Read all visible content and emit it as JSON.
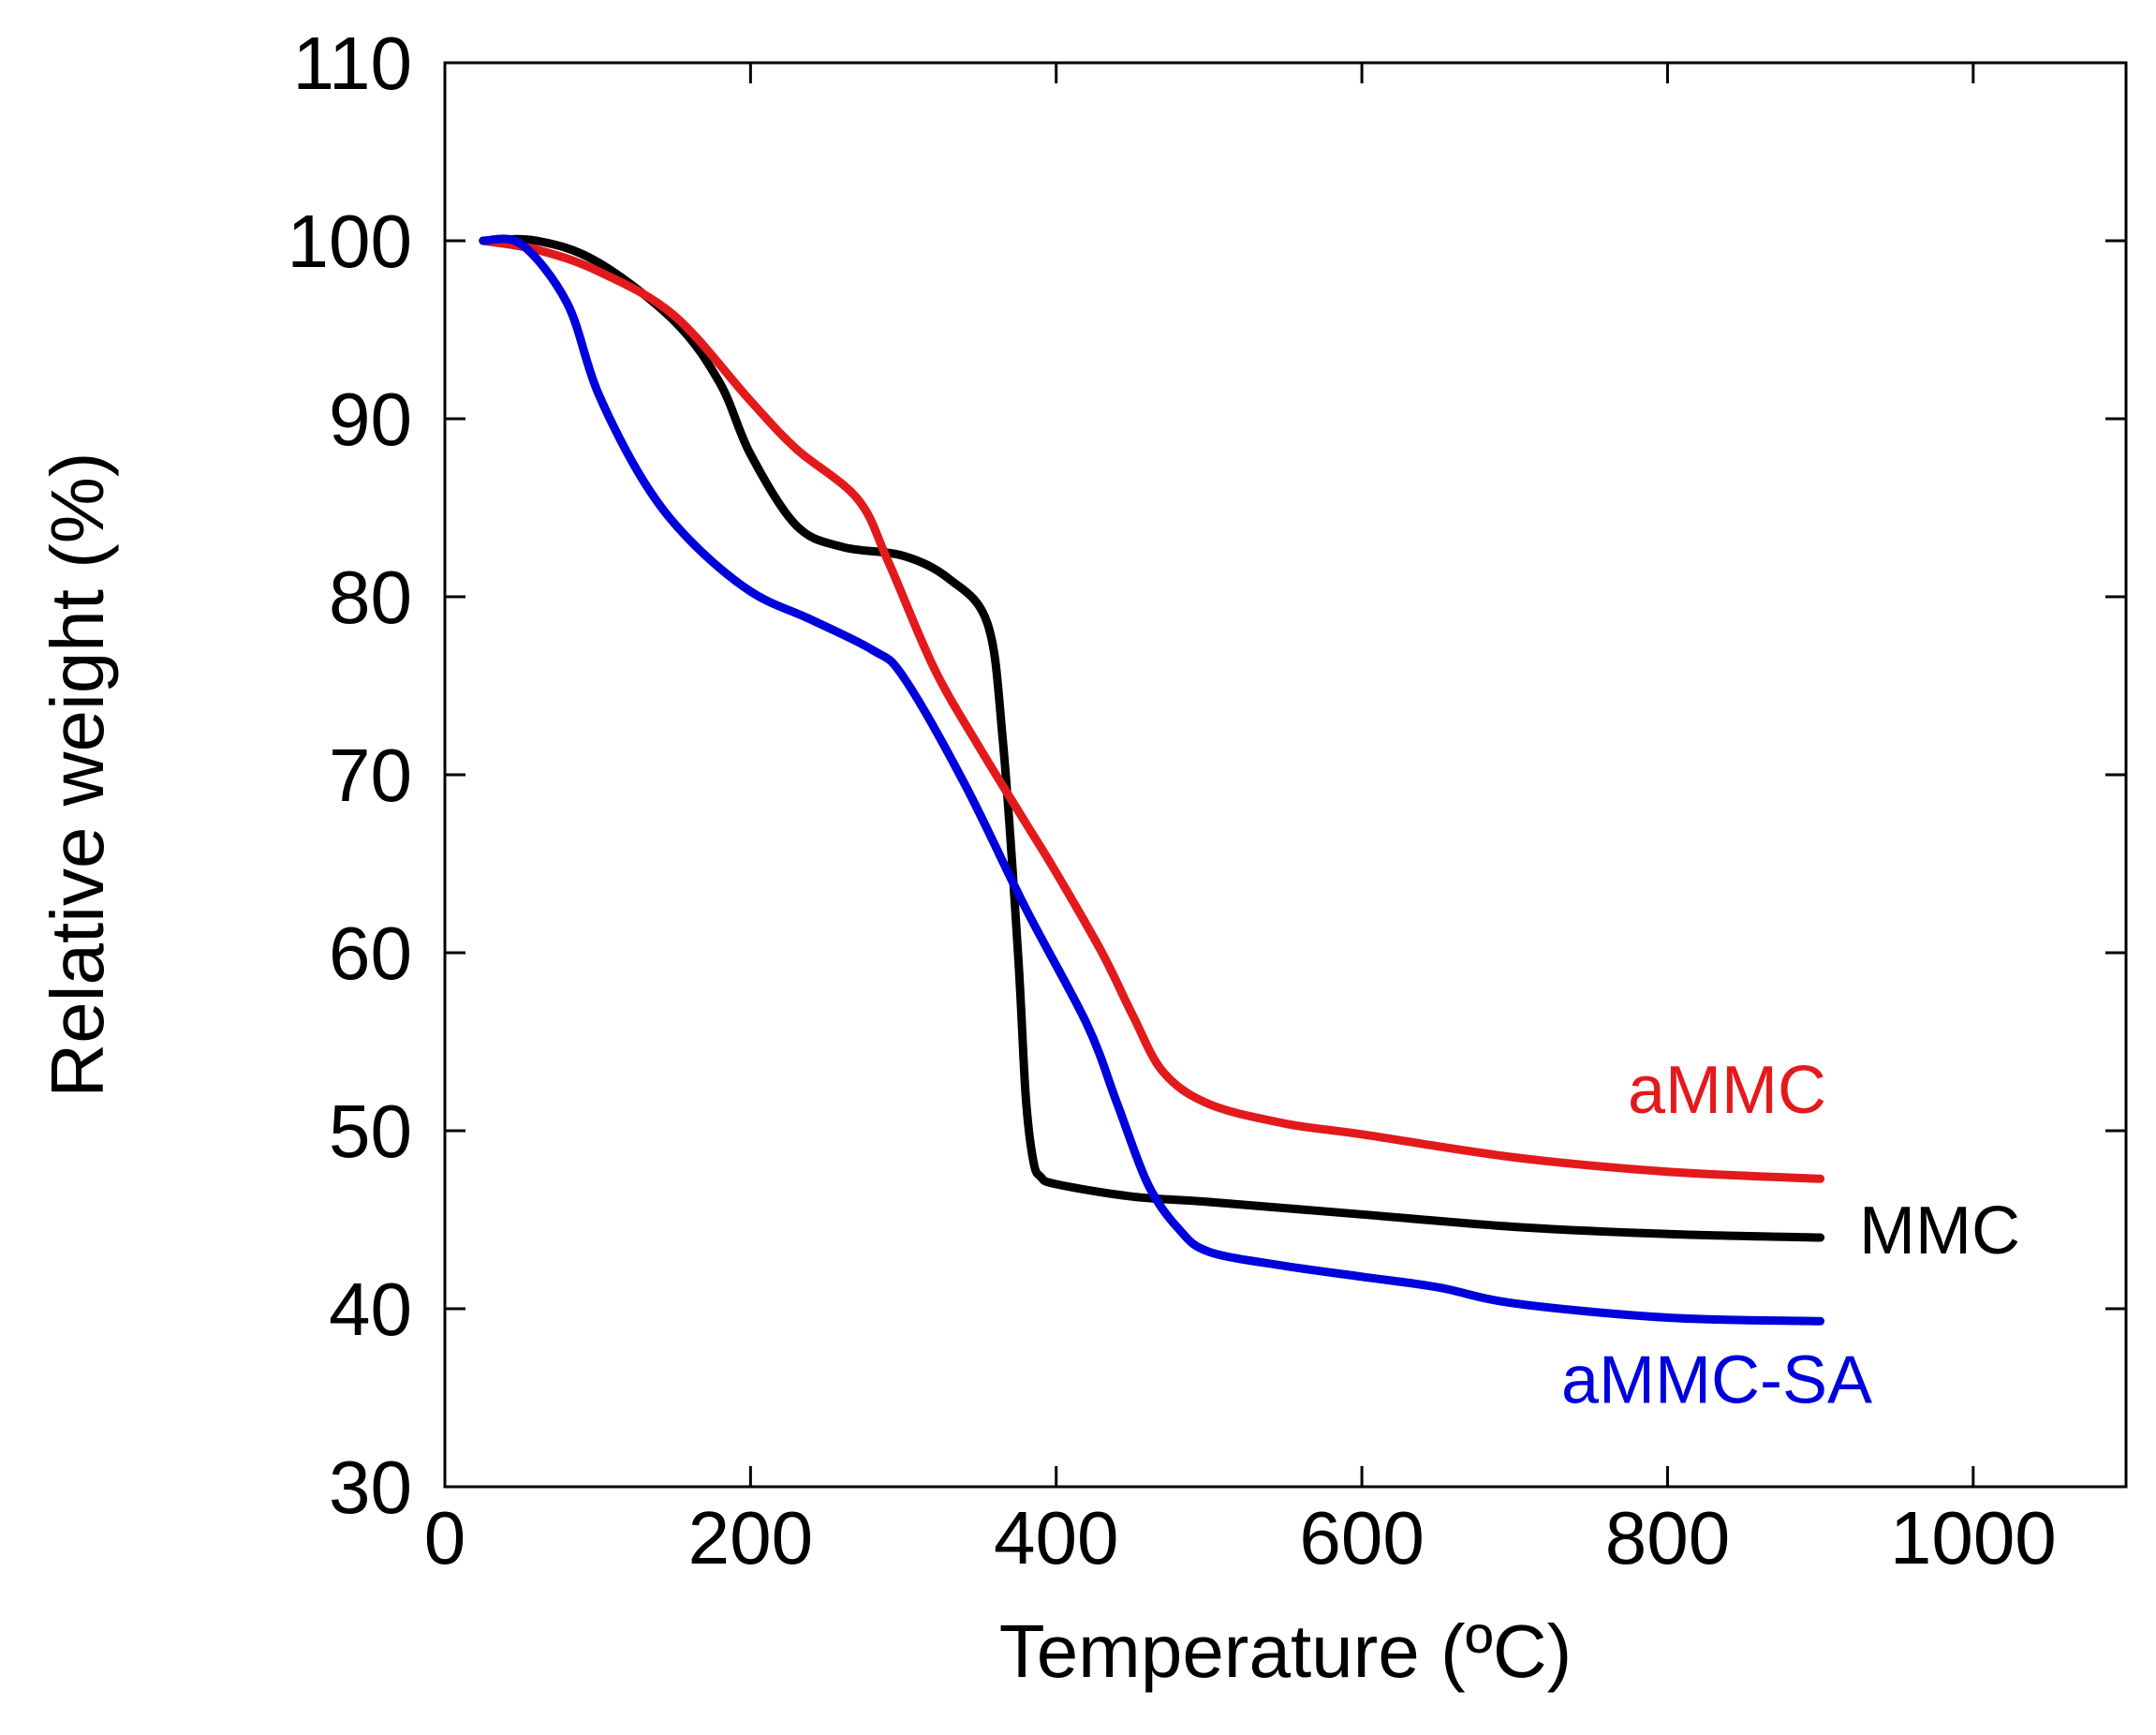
{
  "chart_data": {
    "type": "line",
    "title": "",
    "xlabel": "Temperature (ºC)",
    "ylabel": "Relative weight (%)",
    "xlim": [
      0,
      1100
    ],
    "ylim": [
      30,
      110
    ],
    "xticks": [
      0,
      200,
      400,
      600,
      800,
      1000
    ],
    "yticks": [
      30,
      40,
      50,
      60,
      70,
      80,
      90,
      100,
      110
    ],
    "grid": false,
    "legend": "inline labels at right end of each series",
    "series": [
      {
        "name": "aMMC",
        "color": "#e31a1c",
        "x": [
          25,
          60,
          100,
          150,
          200,
          230,
          270,
          290,
          320,
          350,
          380,
          400,
          430,
          450,
          470,
          500,
          550,
          600,
          700,
          800,
          900
        ],
        "y": [
          100,
          99.5,
          98.3,
          95.8,
          91,
          88.3,
          85.5,
          82,
          76,
          71.5,
          67.3,
          64.5,
          60,
          56.5,
          53.3,
          51.5,
          50.4,
          49.8,
          48.5,
          47.7,
          47.3
        ]
      },
      {
        "name": "MMC",
        "color": "#000000",
        "x": [
          25,
          60,
          100,
          150,
          180,
          200,
          230,
          260,
          300,
          330,
          355,
          365,
          375,
          380,
          385,
          390,
          400,
          450,
          500,
          600,
          700,
          800,
          900
        ],
        "y": [
          100,
          100,
          98.8,
          95.5,
          92,
          88,
          84,
          82.8,
          82.3,
          81,
          78.5,
          72,
          60,
          52,
          48.3,
          47.4,
          47,
          46.3,
          46,
          45.3,
          44.6,
          44.2,
          44
        ]
      },
      {
        "name": "aMMC-SA",
        "color": "#0000dd",
        "x": [
          25,
          50,
          80,
          100,
          130,
          160,
          200,
          240,
          280,
          300,
          340,
          380,
          420,
          440,
          460,
          480,
          500,
          550,
          600,
          650,
          700,
          800,
          900
        ],
        "y": [
          100,
          99.8,
          96.5,
          91.5,
          86.5,
          83.2,
          80.3,
          78.7,
          77,
          75.5,
          69.5,
          62.5,
          56,
          51.5,
          47,
          44.5,
          43.2,
          42.4,
          41.8,
          41.2,
          40.3,
          39.5,
          39.3
        ]
      }
    ],
    "labels": {
      "aMMC": "aMMC",
      "MMC": "MMC",
      "aMMC-SA": "aMMC-SA"
    }
  }
}
